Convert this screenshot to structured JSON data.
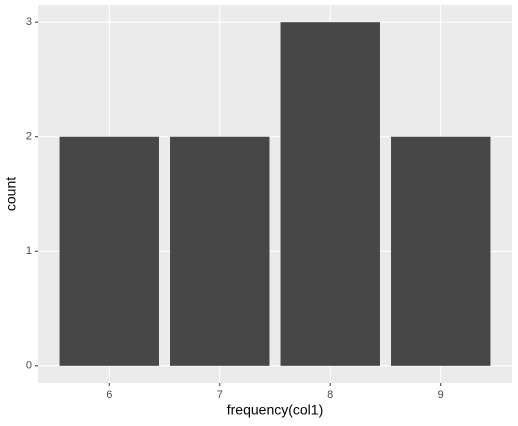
{
  "chart_data": {
    "type": "bar",
    "x_label": "frequency(col1)",
    "y_label": "count",
    "x": [
      6,
      7,
      8,
      9
    ],
    "values": [
      2,
      2,
      3,
      2
    ],
    "color": "#474747",
    "xlim": [
      5.355,
      9.645
    ],
    "xticks": [
      6,
      7,
      8,
      9
    ],
    "ylim": [
      -0.15,
      3.15
    ],
    "yticks": [
      0,
      1,
      2,
      3
    ],
    "grid": true
  }
}
